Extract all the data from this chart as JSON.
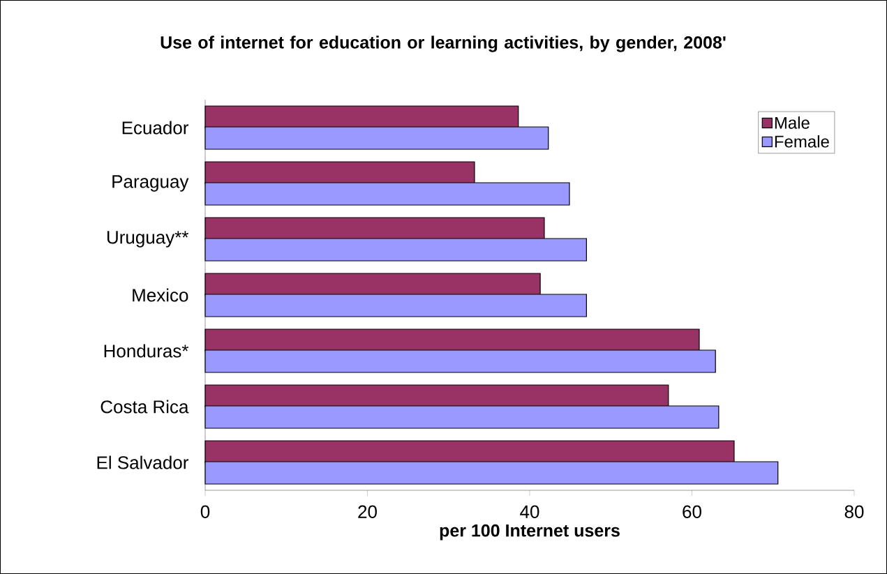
{
  "chart_data": {
    "type": "bar",
    "orientation": "horizontal",
    "title": "Use of internet for education or learning activities, by gender, 2008'",
    "xlabel": "per 100 Internet users",
    "categories": [
      "Ecuador",
      "Paraguay",
      "Uruguay**",
      "Mexico",
      "Honduras*",
      "Costa Rica",
      "El Salvador"
    ],
    "series": [
      {
        "name": "Male",
        "color": "#993366",
        "values": [
          38.6,
          33.2,
          41.8,
          41.3,
          60.9,
          57.1,
          65.2
        ]
      },
      {
        "name": "Female",
        "color": "#9999ff",
        "values": [
          42.3,
          44.9,
          47.0,
          47.0,
          62.9,
          63.3,
          70.6
        ]
      }
    ],
    "xlim": [
      0,
      80
    ],
    "xticks": [
      0,
      20,
      40,
      60,
      80
    ],
    "grid": false,
    "legend": "top right"
  }
}
